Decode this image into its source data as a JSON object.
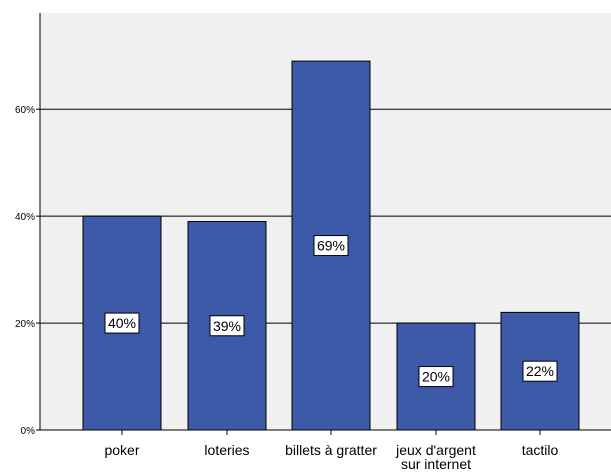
{
  "chart_data": {
    "type": "bar",
    "categories": [
      "poker",
      "loteries",
      "billets à gratter",
      "jeux d'argent sur internet",
      "tactilo"
    ],
    "category_lines": [
      [
        "poker"
      ],
      [
        "loteries"
      ],
      [
        "billets à gratter"
      ],
      [
        "jeux d'argent",
        "sur internet"
      ],
      [
        "tactilo"
      ]
    ],
    "values": [
      40,
      39,
      69,
      20,
      22
    ],
    "data_labels": [
      "40%",
      "39%",
      "69%",
      "20%",
      "22%"
    ],
    "title": "",
    "xlabel": "",
    "ylabel": "",
    "ylim": [
      0,
      78
    ],
    "yticks": [
      0,
      20,
      40,
      60
    ],
    "ytick_labels": [
      "0%",
      "20%",
      "40%",
      "60%"
    ],
    "grid": true,
    "colors": {
      "bar_fill": "#3D5AA9",
      "bar_stroke": "#000000",
      "plot_background": "#F0F0F0",
      "grid": "#000000"
    }
  }
}
